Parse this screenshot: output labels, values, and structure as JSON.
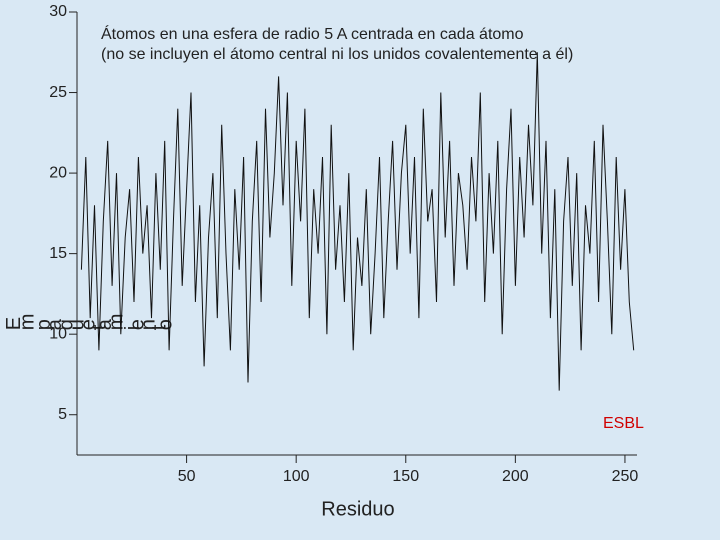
{
  "chart_data": {
    "type": "line",
    "title": [
      "Átomos en una esfera de radio 5 A centrada en cada átomo",
      "(no se incluyen el átomo central ni los unidos covalentemente a él)"
    ],
    "xlabel": "Residuo",
    "ylabel": "Empaquetamiento",
    "annotation": "ESBL",
    "annotation_color": "#d00000",
    "x": [
      2,
      4,
      6,
      8,
      10,
      12,
      14,
      16,
      18,
      20,
      22,
      24,
      26,
      28,
      30,
      32,
      34,
      36,
      38,
      40,
      42,
      44,
      46,
      48,
      50,
      52,
      54,
      56,
      58,
      60,
      62,
      64,
      66,
      68,
      70,
      72,
      74,
      76,
      78,
      80,
      82,
      84,
      86,
      88,
      90,
      92,
      94,
      96,
      98,
      100,
      102,
      104,
      106,
      108,
      110,
      112,
      114,
      116,
      118,
      120,
      122,
      124,
      126,
      128,
      130,
      132,
      134,
      136,
      138,
      140,
      142,
      144,
      146,
      148,
      150,
      152,
      154,
      156,
      158,
      160,
      162,
      164,
      166,
      168,
      170,
      172,
      174,
      176,
      178,
      180,
      182,
      184,
      186,
      188,
      190,
      192,
      194,
      196,
      198,
      200,
      202,
      204,
      206,
      208,
      210,
      212,
      214,
      216,
      218,
      220,
      222,
      224,
      226,
      228,
      230,
      232,
      234,
      236,
      238,
      240,
      242,
      244,
      246,
      248,
      250,
      252,
      254
    ],
    "series": [
      {
        "name": "Empaquetamiento",
        "color": "#111111",
        "values": [
          14,
          21,
          11,
          18,
          9,
          17,
          22,
          13,
          20,
          10,
          16,
          19,
          12,
          21,
          15,
          18,
          11,
          20,
          14,
          22,
          9,
          17,
          24,
          13,
          19,
          25,
          12,
          18,
          8,
          16,
          20,
          11,
          23,
          15,
          9,
          19,
          14,
          21,
          7,
          17,
          22,
          12,
          24,
          16,
          20,
          26,
          18,
          25,
          13,
          22,
          17,
          24,
          11,
          19,
          15,
          21,
          10,
          23,
          14,
          18,
          12,
          20,
          9,
          16,
          13,
          19,
          10,
          15,
          21,
          11,
          17,
          22,
          14,
          20,
          23,
          15,
          21,
          11,
          24,
          17,
          19,
          12,
          25,
          16,
          22,
          13,
          20,
          18,
          14,
          21,
          17,
          25,
          12,
          20,
          15,
          22,
          10,
          19,
          24,
          13,
          21,
          16,
          23,
          18,
          27.5,
          15,
          22,
          11,
          19,
          6.5,
          17,
          21,
          13,
          20,
          9,
          18,
          15,
          22,
          12,
          23,
          17,
          10,
          21,
          14,
          19,
          12,
          9
        ]
      }
    ],
    "xlim": [
      0,
      255.5
    ],
    "ylim": [
      2.5,
      30
    ],
    "xticks": [
      50,
      100,
      150,
      200,
      250
    ],
    "yticks": [
      5,
      10,
      15,
      20,
      25,
      30
    ]
  }
}
